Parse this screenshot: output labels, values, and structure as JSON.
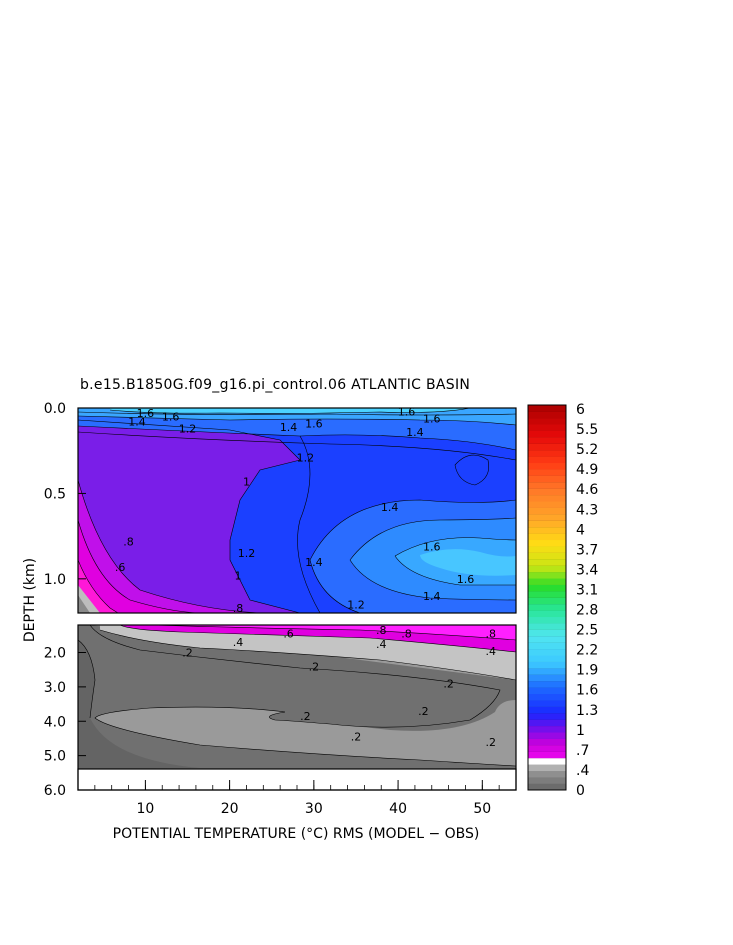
{
  "chart_data": {
    "type": "contour",
    "title": "b.e15.B1850G.f09_g16.pi_control.06 ATLANTIC BASIN",
    "xlabel": "POTENTIAL TEMPERATURE (°C) RMS (MODEL − OBS)",
    "ylabel": "DEPTH (km)",
    "x_ticks": [
      "10",
      "20",
      "30",
      "40",
      "50"
    ],
    "xlim": [
      2,
      54
    ],
    "upper_panel": {
      "ylim": [
        0,
        1.2
      ],
      "y_ticks": [
        "0.0",
        "0.5",
        "1.0"
      ]
    },
    "lower_panel": {
      "ylim": [
        1.2,
        6.0
      ],
      "y_ticks": [
        "2.0",
        "3.0",
        "4.0",
        "5.0",
        "6.0"
      ]
    },
    "colorbar": {
      "labels": [
        "6",
        "5.5",
        "5.2",
        "4.9",
        "4.6",
        "4.3",
        "4",
        "3.7",
        "3.4",
        "3.1",
        "2.8",
        "2.5",
        "2.2",
        "1.9",
        "1.6",
        "1.3",
        "1",
        ".7",
        ".4",
        "0"
      ]
    },
    "upper_contour_labels": [
      {
        "text": "1.6",
        "x": 10,
        "y": 0.03
      },
      {
        "text": "1.4",
        "x": 9,
        "y": 0.08
      },
      {
        "text": "1.6",
        "x": 13,
        "y": 0.05
      },
      {
        "text": "1.2",
        "x": 15,
        "y": 0.12
      },
      {
        "text": "1.4",
        "x": 27,
        "y": 0.11
      },
      {
        "text": "1.6",
        "x": 30,
        "y": 0.09
      },
      {
        "text": "1.6",
        "x": 41,
        "y": 0.02
      },
      {
        "text": "1.6",
        "x": 44,
        "y": 0.06
      },
      {
        "text": "1.4",
        "x": 42,
        "y": 0.14
      },
      {
        "text": "1.2",
        "x": 29,
        "y": 0.29
      },
      {
        "text": "1",
        "x": 22,
        "y": 0.43
      },
      {
        "text": "1.4",
        "x": 39,
        "y": 0.58
      },
      {
        "text": "1.6",
        "x": 44,
        "y": 0.81
      },
      {
        "text": "1.6",
        "x": 48,
        "y": 1.0
      },
      {
        "text": "1.4",
        "x": 44,
        "y": 1.1
      },
      {
        "text": "1.2",
        "x": 35,
        "y": 1.15
      },
      {
        "text": "1.4",
        "x": 30,
        "y": 0.9
      },
      {
        "text": "1.2",
        "x": 22,
        "y": 0.85
      },
      {
        "text": "1",
        "x": 21,
        "y": 0.98
      },
      {
        "text": ".8",
        "x": 8,
        "y": 0.78
      },
      {
        "text": ".6",
        "x": 7,
        "y": 0.93
      },
      {
        "text": ".8",
        "x": 21,
        "y": 1.17
      }
    ],
    "lower_contour_labels": [
      {
        "text": ".6",
        "x": 27,
        "y": 1.45
      },
      {
        "text": ".4",
        "x": 21,
        "y": 1.7
      },
      {
        "text": ".2",
        "x": 15,
        "y": 2.0
      },
      {
        "text": ".8",
        "x": 38,
        "y": 1.35
      },
      {
        "text": ".8",
        "x": 41,
        "y": 1.45
      },
      {
        "text": ".4",
        "x": 38,
        "y": 1.75
      },
      {
        "text": ".8",
        "x": 51,
        "y": 1.45
      },
      {
        "text": ".4",
        "x": 51,
        "y": 1.95
      },
      {
        "text": ".2",
        "x": 30,
        "y": 2.4
      },
      {
        "text": ".2",
        "x": 46,
        "y": 2.9
      },
      {
        "text": ".2",
        "x": 29,
        "y": 3.85
      },
      {
        "text": ".2",
        "x": 43,
        "y": 3.7
      },
      {
        "text": ".2",
        "x": 35,
        "y": 4.45
      },
      {
        "text": ".2",
        "x": 51,
        "y": 4.6
      }
    ]
  }
}
